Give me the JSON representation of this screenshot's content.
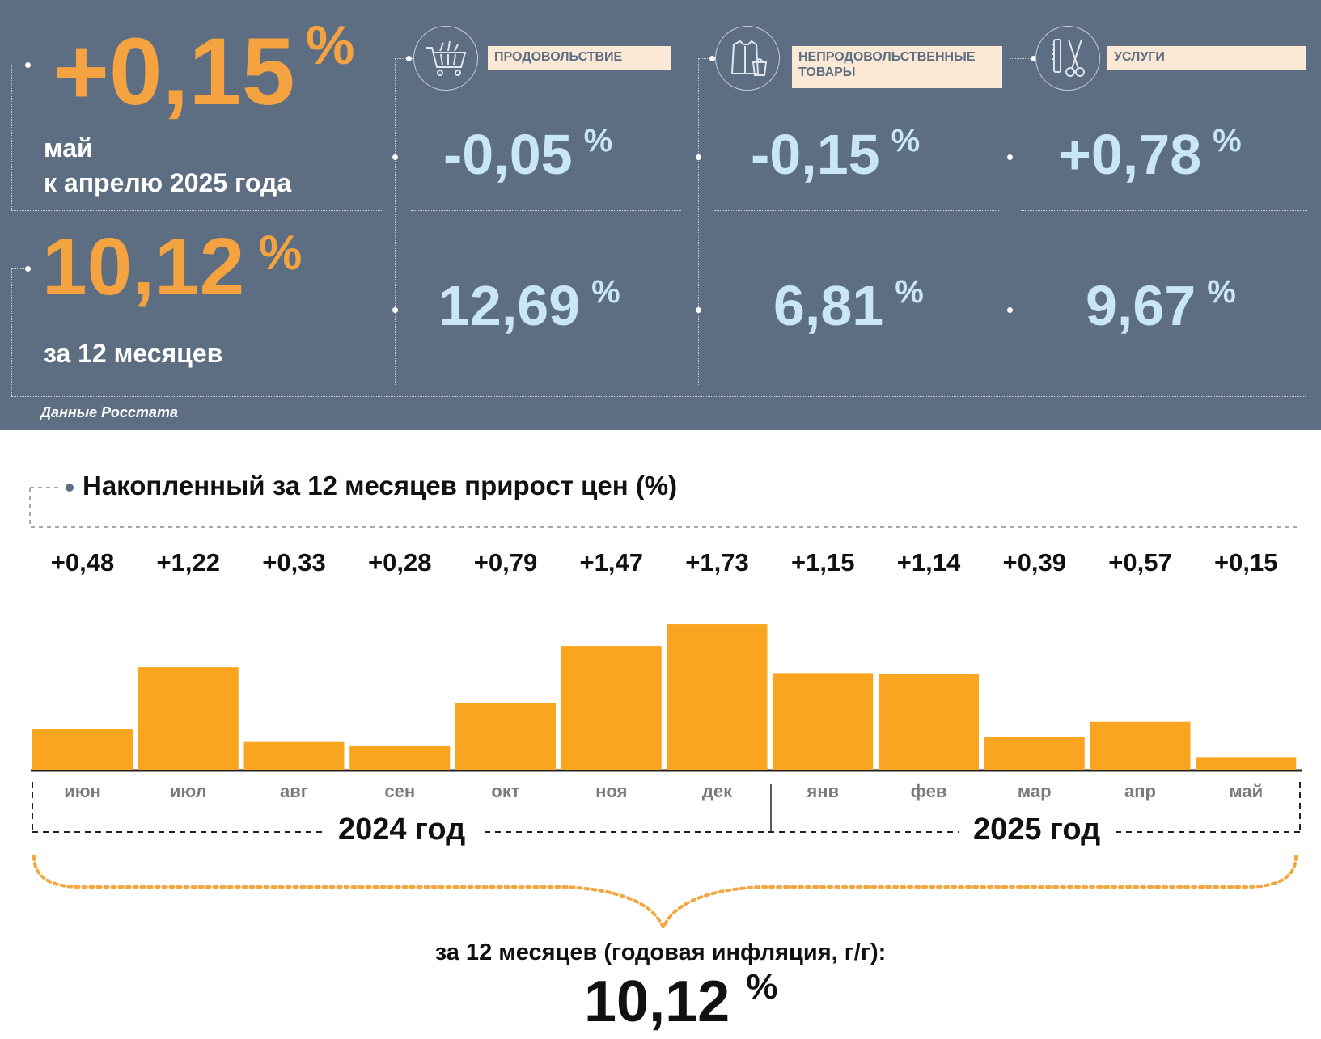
{
  "panel": {
    "monthly": {
      "value": "+0,15",
      "unit": "%",
      "label_line1": "май",
      "label_line2": "к апрелю 2025 года"
    },
    "annual": {
      "value": "10,12",
      "unit": "%",
      "label": "за 12 месяцев"
    },
    "categories": [
      {
        "icon": "shopping-cart-icon",
        "label": "ПРОДОВОЛЬСТВИЕ",
        "monthly": "-0,05",
        "annual": "12,69",
        "unit": "%"
      },
      {
        "icon": "clothing-icon",
        "label": "НЕПРОДОВОЛЬСТВЕННЫЕ\nТОВАРЫ",
        "monthly": "-0,15",
        "annual": "6,81",
        "unit": "%"
      },
      {
        "icon": "scissors-comb-icon",
        "label": "УСЛУГИ",
        "monthly": "+0,78",
        "annual": "9,67",
        "unit": "%"
      }
    ],
    "source": "Данные Росстата"
  },
  "chart_data": {
    "type": "bar",
    "title": "Накопленный за 12 месяцев прирост цен (%)",
    "categories": [
      "июн",
      "июл",
      "авг",
      "сен",
      "окт",
      "ноя",
      "дек",
      "янв",
      "фев",
      "мар",
      "апр",
      "май"
    ],
    "values": [
      0.48,
      1.22,
      0.33,
      0.28,
      0.79,
      1.47,
      1.73,
      1.15,
      1.14,
      0.39,
      0.57,
      0.15
    ],
    "value_labels": [
      "+0,48",
      "+1,22",
      "+0,33",
      "+0,28",
      "+0,79",
      "+1,47",
      "+1,73",
      "+1,15",
      "+1,14",
      "+0,39",
      "+0,57",
      "+0,15"
    ],
    "years": [
      "2024 год",
      "2025 год"
    ],
    "bar_color": "#f9a51f",
    "annual_caption": "за 12 месяцев (годовая инфляция, г/г):",
    "annual_value": "10,12",
    "annual_unit": "%"
  },
  "colors": {
    "panel_bg": "#5d6e82",
    "accent_orange": "#f4a340",
    "value_blue": "#c8e6f5",
    "label_bg": "#fbe9d5",
    "bar": "#f9a51f"
  }
}
